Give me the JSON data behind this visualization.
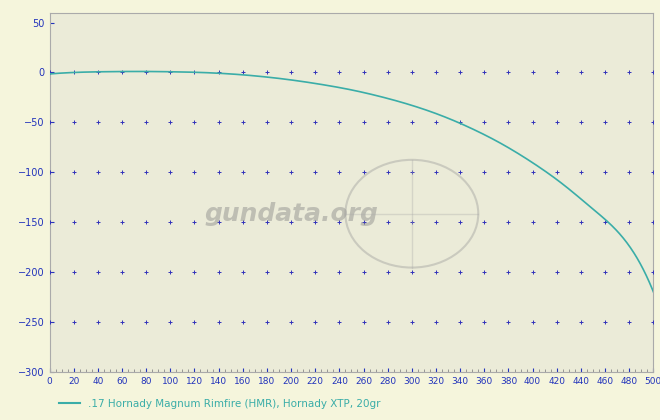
{
  "bg_color": "#f5f5dc",
  "plot_bg_color": "#ebebd8",
  "line_color": "#3aada8",
  "dot_color": "#3333bb",
  "xlim": [
    0,
    500
  ],
  "ylim": [
    -300,
    60
  ],
  "xticks": [
    0,
    20,
    40,
    60,
    80,
    100,
    120,
    140,
    160,
    180,
    200,
    220,
    240,
    260,
    280,
    300,
    320,
    340,
    360,
    380,
    400,
    420,
    440,
    460,
    480,
    500
  ],
  "yticks": [
    50,
    0,
    -50,
    -100,
    -150,
    -200,
    -250,
    -300
  ],
  "dot_y_positions": [
    0,
    -50,
    -100,
    -150,
    -200,
    -250
  ],
  "legend_label": ".17 Hornady Magnum Rimfire (HMR), Hornady XTP, 20gr",
  "ballistic_x": [
    0,
    25,
    50,
    75,
    100,
    125,
    150,
    175,
    200,
    225,
    250,
    275,
    300,
    325,
    350,
    375,
    400,
    425,
    450,
    475,
    500
  ],
  "ballistic_y": [
    -1.5,
    0.2,
    0.8,
    1.0,
    0.7,
    0.0,
    -1.5,
    -4.0,
    -7.5,
    -12.0,
    -17.5,
    -24.5,
    -33.0,
    -43.5,
    -56.5,
    -72.0,
    -90.5,
    -112.0,
    -137.0,
    -166.0,
    -220.0
  ]
}
